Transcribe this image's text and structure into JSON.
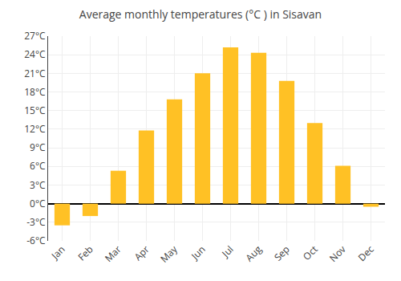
{
  "chart_data": {
    "type": "bar",
    "title": "Average monthly temperatures (°C ) in Sisavan",
    "categories": [
      "Jan",
      "Feb",
      "Mar",
      "Apr",
      "May",
      "Jun",
      "Jul",
      "Aug",
      "Sep",
      "Oct",
      "Nov",
      "Dec"
    ],
    "values": [
      -3.5,
      -2.0,
      5.3,
      11.8,
      16.8,
      21.0,
      25.2,
      24.3,
      19.8,
      13.0,
      6.1,
      -0.5
    ],
    "color": "#FFC125",
    "ylim": [
      -6,
      27
    ],
    "yticks": [
      {
        "value": -6,
        "label": "-6°C"
      },
      {
        "value": -3,
        "label": "-3°C"
      },
      {
        "value": 0,
        "label": "0°C"
      },
      {
        "value": 3,
        "label": "3°C"
      },
      {
        "value": 6,
        "label": "6°C"
      },
      {
        "value": 9,
        "label": "9°C"
      },
      {
        "value": 12,
        "label": "12°C"
      },
      {
        "value": 15,
        "label": "15°C"
      },
      {
        "value": 18,
        "label": "18°C"
      },
      {
        "value": 21,
        "label": "21°C"
      },
      {
        "value": 24,
        "label": "24°C"
      },
      {
        "value": 27,
        "label": "27°C"
      }
    ],
    "grid": true
  }
}
